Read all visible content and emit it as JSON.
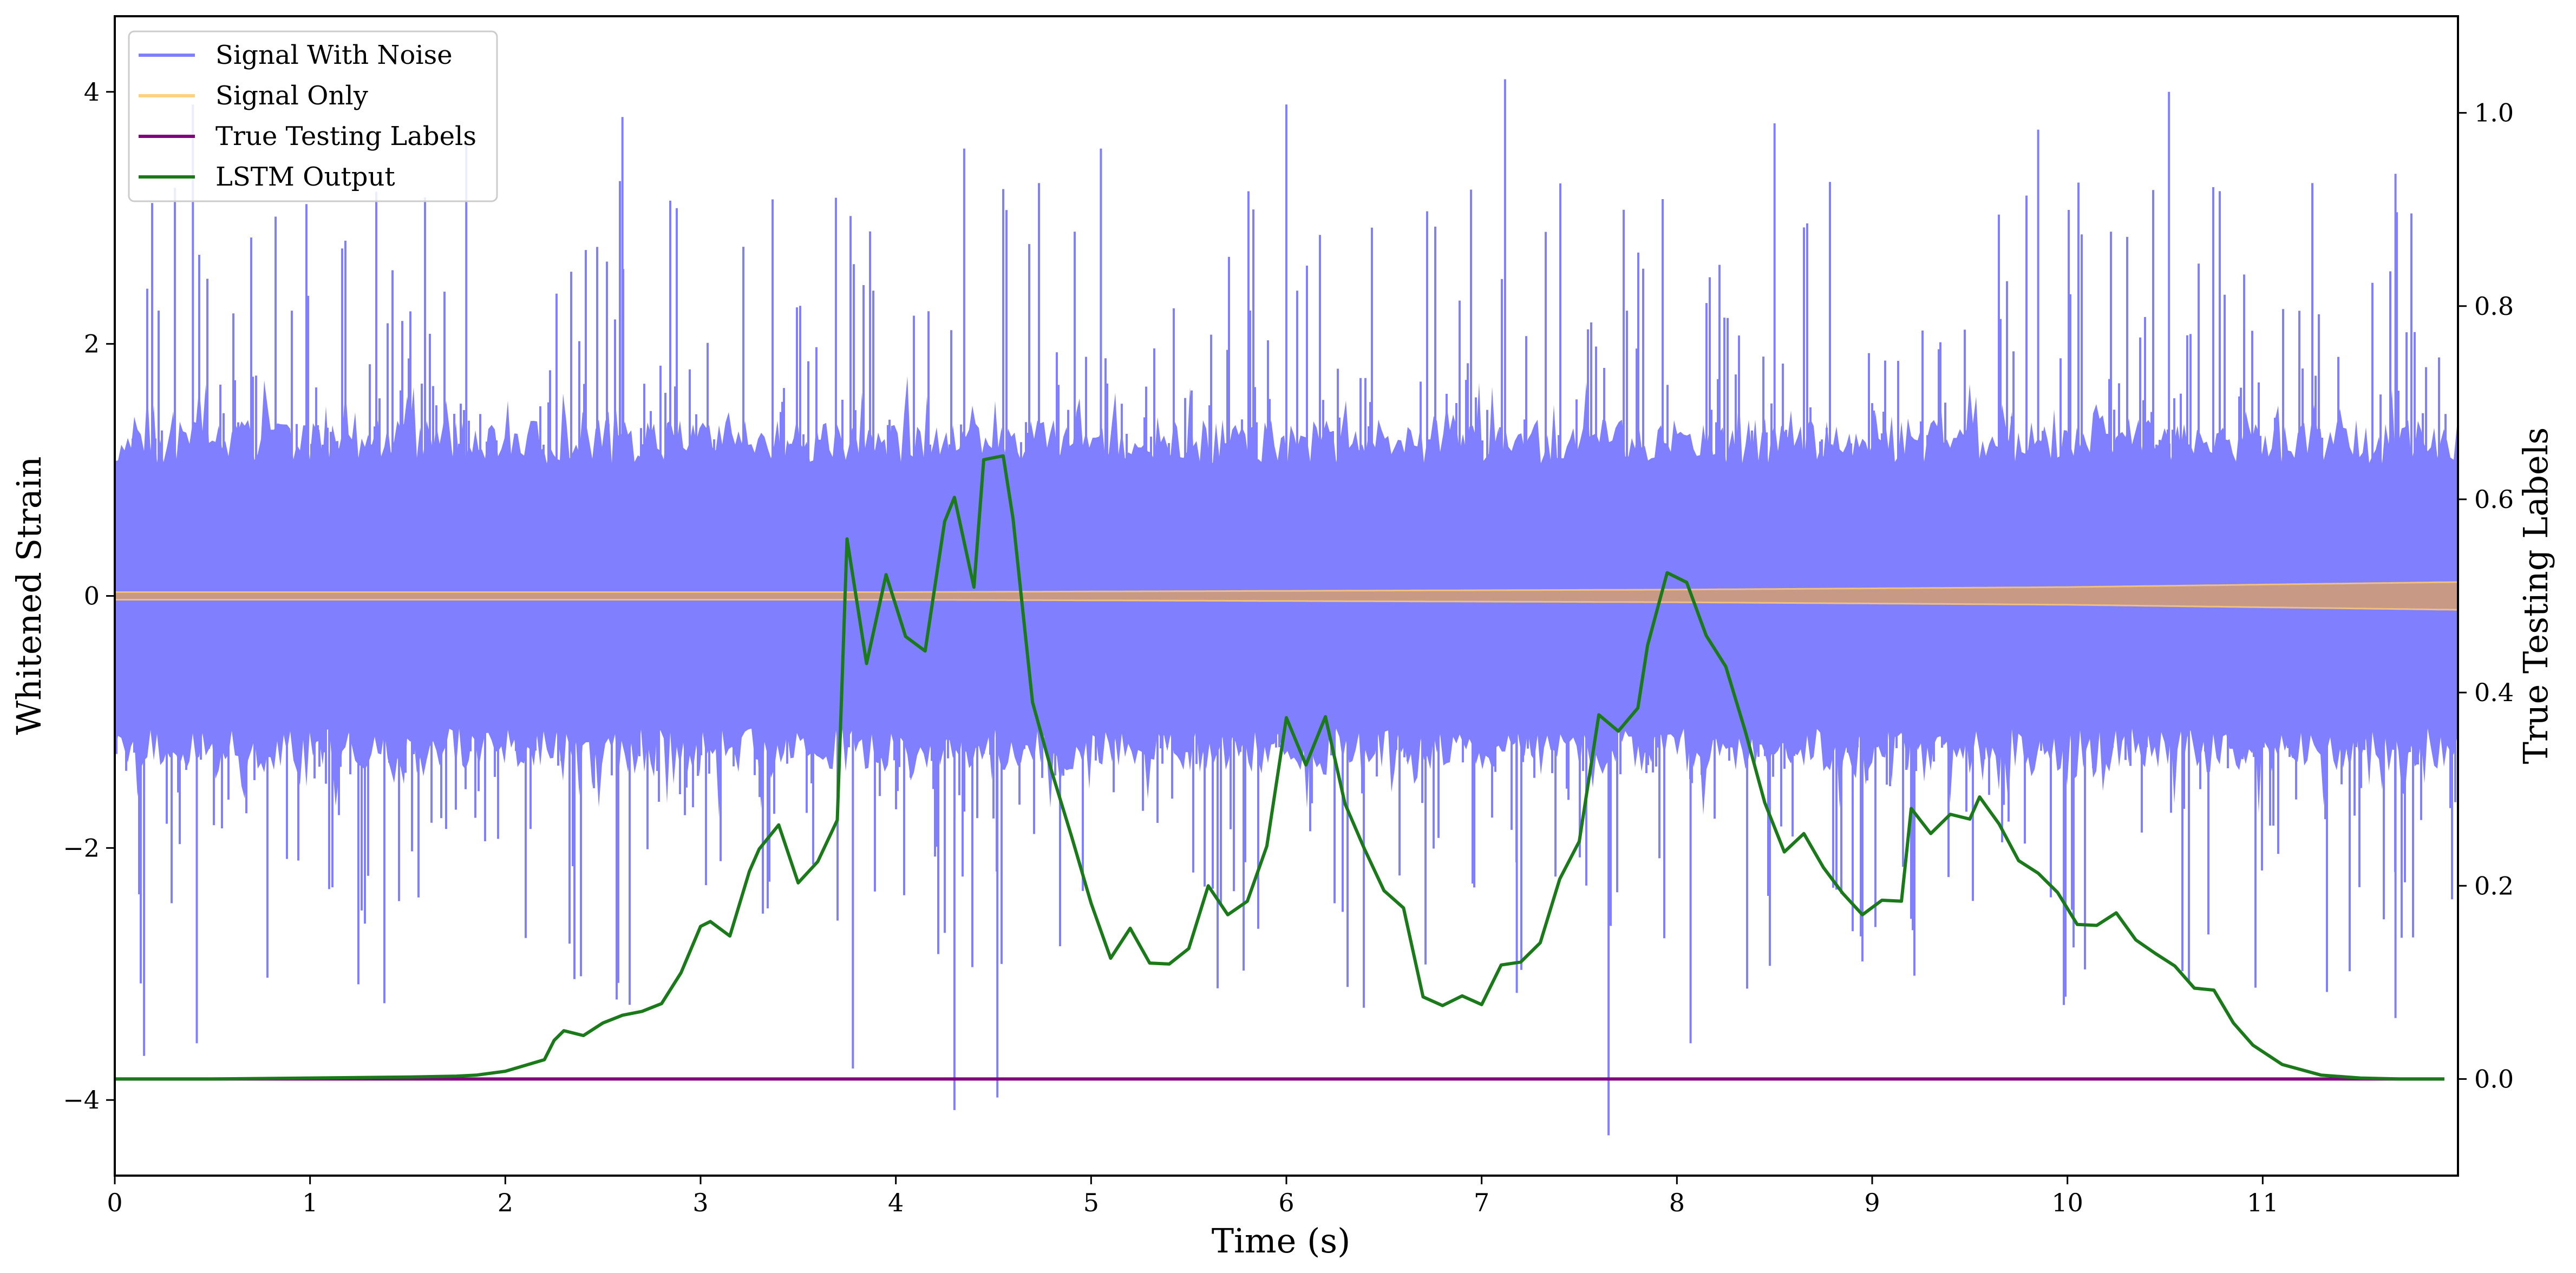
{
  "chart_data": {
    "type": "line",
    "title": "",
    "xlabel": "Time (s)",
    "ylabel_left": "Whitened Strain",
    "ylabel_right": "True Testing Labels",
    "xlim": [
      0,
      12
    ],
    "ylim_left": [
      -4.6,
      4.6
    ],
    "ylim_right": [
      -0.1,
      1.1
    ],
    "x_ticks": [
      0,
      1,
      2,
      3,
      4,
      5,
      6,
      7,
      8,
      9,
      10,
      11
    ],
    "x_tick_labels": [
      "0",
      "1",
      "2",
      "3",
      "4",
      "5",
      "6",
      "7",
      "8",
      "9",
      "10",
      "11"
    ],
    "y_left_ticks": [
      -4,
      -2,
      0,
      2,
      4
    ],
    "y_left_tick_labels": [
      "−4",
      "−2",
      "0",
      "2",
      "4"
    ],
    "y_right_ticks": [
      0.0,
      0.2,
      0.4,
      0.6,
      0.8,
      1.0
    ],
    "y_right_tick_labels": [
      "0.0",
      "0.2",
      "0.4",
      "0.6",
      "0.8",
      "1.0"
    ],
    "grid": false,
    "legend_position": "top-left",
    "legend": [
      {
        "label": "Signal With Noise",
        "color": "#8080ff"
      },
      {
        "label": "Signal Only",
        "color": "#ffd280"
      },
      {
        "label": "True Testing Labels",
        "color": "#800080"
      },
      {
        "label": "LSTM Output",
        "color": "#1a7a1a"
      }
    ],
    "series": [
      {
        "name": "Signal With Noise",
        "axis": "left",
        "color": "#8080ff",
        "description": "dense noisy strain, typical amplitude about ±1.2, spikes up to about 4.1 and down to about -4.3",
        "spikes_up": [
          [
            0.4,
            3.9
          ],
          [
            1.8,
            3.6
          ],
          [
            2.6,
            3.8
          ],
          [
            4.35,
            3.55
          ],
          [
            5.05,
            3.55
          ],
          [
            6.0,
            3.9
          ],
          [
            7.12,
            4.1
          ],
          [
            8.5,
            3.75
          ],
          [
            9.85,
            3.7
          ],
          [
            10.52,
            4.0
          ],
          [
            11.68,
            3.35
          ]
        ],
        "spikes_down": [
          [
            0.15,
            -3.65
          ],
          [
            0.42,
            -3.55
          ],
          [
            3.78,
            -3.75
          ],
          [
            4.3,
            -4.08
          ],
          [
            4.52,
            -3.98
          ],
          [
            7.18,
            -3.15
          ],
          [
            7.65,
            -4.28
          ],
          [
            8.07,
            -3.55
          ],
          [
            11.68,
            -3.35
          ]
        ]
      },
      {
        "name": "Signal Only",
        "axis": "left",
        "color": "#ffd280",
        "envelope": [
          [
            0,
            0.03
          ],
          [
            4,
            0.03
          ],
          [
            6,
            0.04
          ],
          [
            8,
            0.05
          ],
          [
            10,
            0.07
          ],
          [
            12,
            0.11
          ]
        ]
      },
      {
        "name": "True Testing Labels",
        "axis": "right",
        "color": "#800080",
        "x": [
          0,
          11.93
        ],
        "y": [
          0.0,
          0.0
        ]
      },
      {
        "name": "LSTM Output",
        "axis": "right",
        "color": "#1a7a1a",
        "x": [
          0.0,
          0.5,
          1.0,
          1.5,
          1.75,
          1.85,
          2.0,
          2.2,
          2.25,
          2.3,
          2.4,
          2.5,
          2.6,
          2.7,
          2.8,
          2.9,
          3.0,
          3.05,
          3.15,
          3.25,
          3.3,
          3.4,
          3.5,
          3.6,
          3.7,
          3.75,
          3.85,
          3.95,
          4.05,
          4.15,
          4.25,
          4.3,
          4.4,
          4.45,
          4.55,
          4.6,
          4.7,
          4.8,
          4.9,
          5.0,
          5.1,
          5.2,
          5.3,
          5.4,
          5.5,
          5.6,
          5.7,
          5.8,
          5.9,
          6.0,
          6.1,
          6.2,
          6.3,
          6.4,
          6.5,
          6.6,
          6.7,
          6.8,
          6.9,
          7.0,
          7.1,
          7.2,
          7.3,
          7.4,
          7.5,
          7.6,
          7.7,
          7.8,
          7.85,
          7.95,
          8.05,
          8.15,
          8.25,
          8.35,
          8.45,
          8.55,
          8.65,
          8.75,
          8.85,
          8.95,
          9.05,
          9.15,
          9.2,
          9.3,
          9.4,
          9.5,
          9.55,
          9.65,
          9.75,
          9.85,
          9.95,
          10.05,
          10.15,
          10.25,
          10.35,
          10.45,
          10.55,
          10.65,
          10.75,
          10.85,
          10.95,
          11.1,
          11.3,
          11.5,
          11.7,
          11.93
        ],
        "y": [
          0.0,
          0.0,
          0.001,
          0.002,
          0.003,
          0.004,
          0.008,
          0.02,
          0.04,
          0.05,
          0.045,
          0.058,
          0.066,
          0.07,
          0.078,
          0.11,
          0.158,
          0.163,
          0.148,
          0.215,
          0.238,
          0.263,
          0.203,
          0.225,
          0.268,
          0.559,
          0.43,
          0.522,
          0.458,
          0.443,
          0.577,
          0.602,
          0.509,
          0.641,
          0.645,
          0.58,
          0.39,
          0.317,
          0.251,
          0.182,
          0.125,
          0.156,
          0.12,
          0.119,
          0.135,
          0.2,
          0.17,
          0.184,
          0.241,
          0.374,
          0.325,
          0.375,
          0.285,
          0.238,
          0.195,
          0.177,
          0.085,
          0.076,
          0.086,
          0.077,
          0.118,
          0.121,
          0.141,
          0.207,
          0.246,
          0.377,
          0.36,
          0.384,
          0.449,
          0.524,
          0.514,
          0.459,
          0.427,
          0.36,
          0.286,
          0.235,
          0.254,
          0.219,
          0.192,
          0.17,
          0.185,
          0.184,
          0.28,
          0.254,
          0.274,
          0.269,
          0.292,
          0.264,
          0.226,
          0.213,
          0.193,
          0.16,
          0.159,
          0.172,
          0.144,
          0.13,
          0.117,
          0.094,
          0.092,
          0.058,
          0.035,
          0.015,
          0.004,
          0.001,
          0.0,
          0.0
        ]
      }
    ]
  }
}
